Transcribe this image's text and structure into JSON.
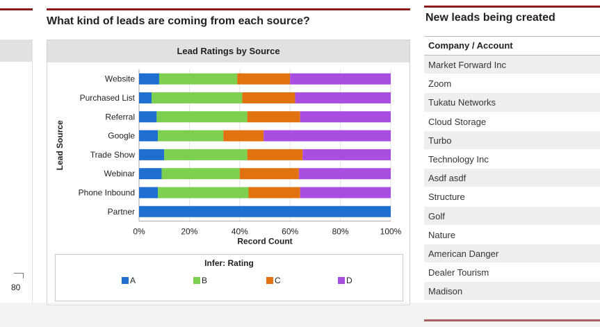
{
  "left": {
    "value_label": "80"
  },
  "middle": {
    "heading": "What kind of leads are coming from each source?",
    "chart_title": "Lead Ratings by Source"
  },
  "right": {
    "heading": "New leads being created",
    "column_header": "Company / Account",
    "rows": [
      "Market Forward Inc",
      "Zoom",
      "Tukatu Networks",
      "Cloud Storage",
      "Turbo",
      "Technology Inc",
      "Asdf asdf",
      "Structure",
      "Golf",
      "Nature",
      "American Danger",
      "Dealer Tourism",
      "Madison"
    ]
  },
  "colors": {
    "A": "#1f6fd1",
    "B": "#7dcf4f",
    "C": "#e0720f",
    "D": "#a84ee0",
    "accent": "#8b1b1b"
  },
  "chart_data": {
    "type": "bar",
    "orientation": "horizontal",
    "stacked": true,
    "categories": [
      "Website",
      "Purchased List",
      "Referral",
      "Google",
      "Trade Show",
      "Webinar",
      "Phone Inbound",
      "Partner"
    ],
    "series": [
      {
        "name": "A",
        "values": [
          8,
          5,
          7,
          7.5,
          10,
          9,
          7.5,
          100
        ]
      },
      {
        "name": "B",
        "values": [
          31,
          36,
          36,
          26,
          33,
          31,
          36,
          0
        ]
      },
      {
        "name": "C",
        "values": [
          21,
          21,
          21,
          16,
          22,
          23.5,
          20.5,
          0
        ]
      },
      {
        "name": "D",
        "values": [
          40,
          38,
          36,
          50.5,
          35,
          36.5,
          36,
          0
        ]
      }
    ],
    "xlabel": "Record Count",
    "ylabel": "Lead Source",
    "xticks": [
      "0%",
      "20%",
      "40%",
      "60%",
      "80%",
      "100%"
    ],
    "xlim": [
      0,
      100
    ],
    "legend_title": "Infer: Rating",
    "legend_position": "bottom",
    "grid": true
  }
}
